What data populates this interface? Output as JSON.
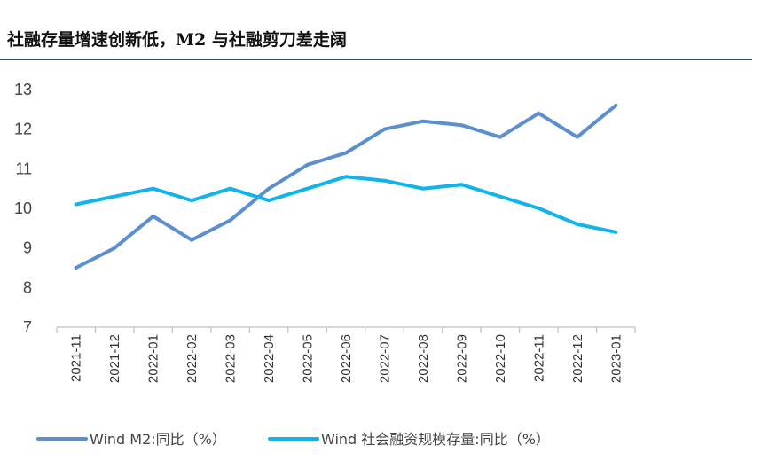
{
  "header": {
    "title": "社融存量增速创新低，M2 与社融剪刀差走阔"
  },
  "chart_data": {
    "type": "line",
    "title": "社融存量增速创新低，M2 与社融剪刀差走阔",
    "xlabel": "",
    "ylabel": "",
    "categories": [
      "2021-11",
      "2021-12",
      "2022-01",
      "2022-02",
      "2022-03",
      "2022-04",
      "2022-05",
      "2022-06",
      "2022-07",
      "2022-08",
      "2022-09",
      "2022-10",
      "2022-11",
      "2022-12",
      "2023-01"
    ],
    "ylim": [
      7,
      13
    ],
    "yticks": [
      7,
      8,
      9,
      10,
      11,
      12,
      13
    ],
    "grid": false,
    "legend_position": "bottom",
    "series": [
      {
        "name": "Wind M2:同比（%）",
        "color": "#5b8fcf",
        "values": [
          8.5,
          9.0,
          9.8,
          9.2,
          9.7,
          10.5,
          11.1,
          11.4,
          12.0,
          12.2,
          12.1,
          11.8,
          12.4,
          11.8,
          12.6
        ]
      },
      {
        "name": "Wind 社会融资规模存量:同比（%）",
        "color": "#12b3ea",
        "values": [
          10.1,
          10.3,
          10.5,
          10.2,
          10.5,
          10.2,
          10.5,
          10.8,
          10.7,
          10.5,
          10.6,
          10.3,
          10.0,
          9.6,
          9.4
        ]
      }
    ]
  }
}
